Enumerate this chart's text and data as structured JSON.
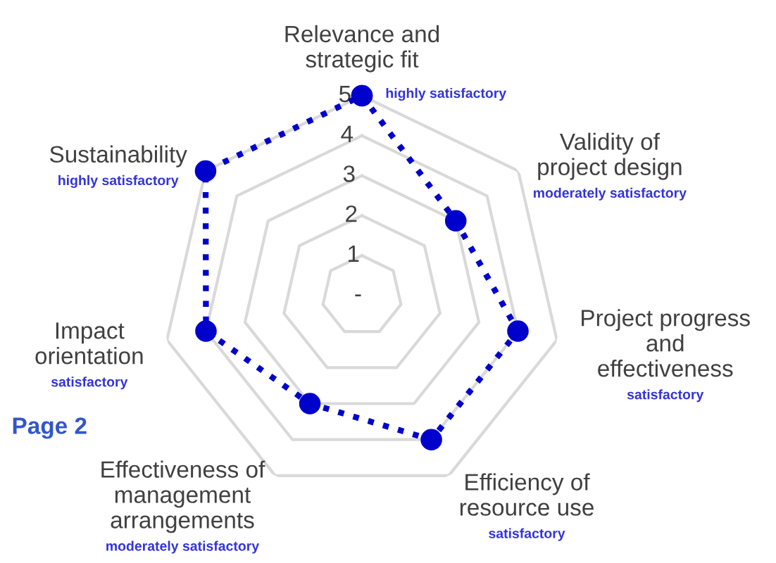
{
  "chart_data": {
    "type": "radar",
    "categories": [
      "Relevance and\nstrategic fit",
      "Validity of\nproject design",
      "Project progress\nand\neffectiveness",
      "Efficiency of\nresource use",
      "Effectiveness of\nmanagement\narrangements",
      "Impact\norientation",
      "Sustainability"
    ],
    "series": [
      {
        "color": "#0000cc",
        "values": [
          5,
          3,
          4,
          4,
          3,
          4,
          5
        ]
      }
    ],
    "ylim": [
      0,
      5
    ],
    "yticks": [
      {
        "value": 0,
        "label": "-"
      },
      1,
      2,
      3,
      4,
      5
    ],
    "grid": true,
    "legend": false,
    "marker": "circle",
    "line_style": "dotted",
    "annotations": [
      "highly satisfactory",
      "moderately satisfactory",
      "satisfactory",
      "satisfactory",
      "moderately satisfactory",
      "satisfactory",
      "highly satisfactory",
      "Page 2"
    ]
  }
}
